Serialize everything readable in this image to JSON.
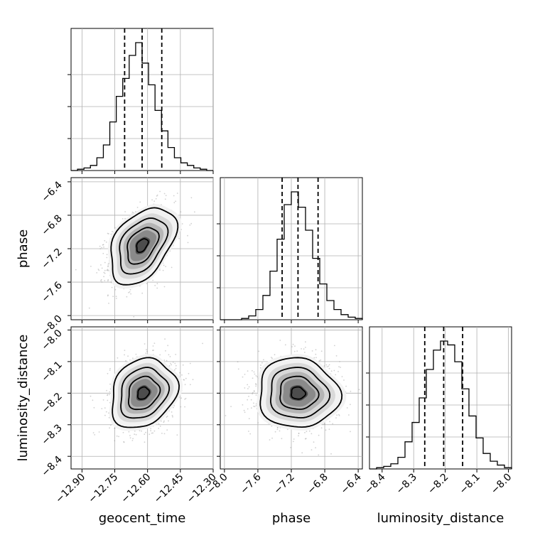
{
  "chart_data": {
    "type": "corner",
    "parameters": [
      "geocent_time",
      "phase",
      "luminosity_distance"
    ],
    "ranges": {
      "geocent_time": [
        -12.95,
        -12.3
      ],
      "phase": [
        -8.05,
        -6.35
      ],
      "luminosity_distance": [
        -8.44,
        -7.99
      ]
    },
    "ticks": {
      "geocent_time": [
        "-12.90",
        "-12.75",
        "-12.60",
        "-12.45",
        "-12.30"
      ],
      "phase": [
        "-8.0",
        "-7.6",
        "-7.2",
        "-6.8",
        "-6.4"
      ],
      "luminosity_distance": [
        "-8.4",
        "-8.3",
        "-8.2",
        "-8.1",
        "-8.0"
      ]
    },
    "quantiles": {
      "geocent_time": [
        -12.705,
        -12.625,
        -12.535
      ],
      "phase": [
        -7.31,
        -7.12,
        -6.88
      ],
      "luminosity_distance": [
        -8.265,
        -8.205,
        -8.145
      ]
    },
    "histograms": {
      "geocent_time": {
        "edges_range": [
          -12.95,
          -12.3
        ],
        "counts": [
          0,
          1,
          2,
          4,
          10,
          20,
          38,
          58,
          72,
          90,
          100,
          84,
          67,
          47,
          31,
          18,
          10,
          6,
          4,
          2,
          1,
          0
        ]
      },
      "phase": {
        "edges_range": [
          -8.05,
          -6.35
        ],
        "counts": [
          0,
          0,
          0,
          1,
          3,
          8,
          19,
          38,
          63,
          90,
          100,
          88,
          70,
          48,
          28,
          15,
          8,
          4,
          2,
          1
        ]
      },
      "luminosity_distance": {
        "edges_range": [
          -8.44,
          -7.99
        ],
        "counts": [
          0,
          1,
          2,
          4,
          9,
          21,
          36,
          55,
          77,
          92,
          99,
          96,
          83,
          62,
          41,
          24,
          12,
          6,
          3,
          1
        ]
      }
    },
    "pairs": [
      {
        "x": "geocent_time",
        "y": "phase",
        "center": [
          -12.625,
          -7.16
        ],
        "sd": [
          0.075,
          0.23
        ],
        "corr": 0.42
      },
      {
        "x": "geocent_time",
        "y": "luminosity_distance",
        "center": [
          -12.62,
          -8.2
        ],
        "sd": [
          0.075,
          0.055
        ],
        "corr": 0.2
      },
      {
        "x": "phase",
        "y": "luminosity_distance",
        "center": [
          -7.12,
          -8.2
        ],
        "sd": [
          0.24,
          0.055
        ],
        "corr": -0.05
      }
    ],
    "grid": true
  }
}
